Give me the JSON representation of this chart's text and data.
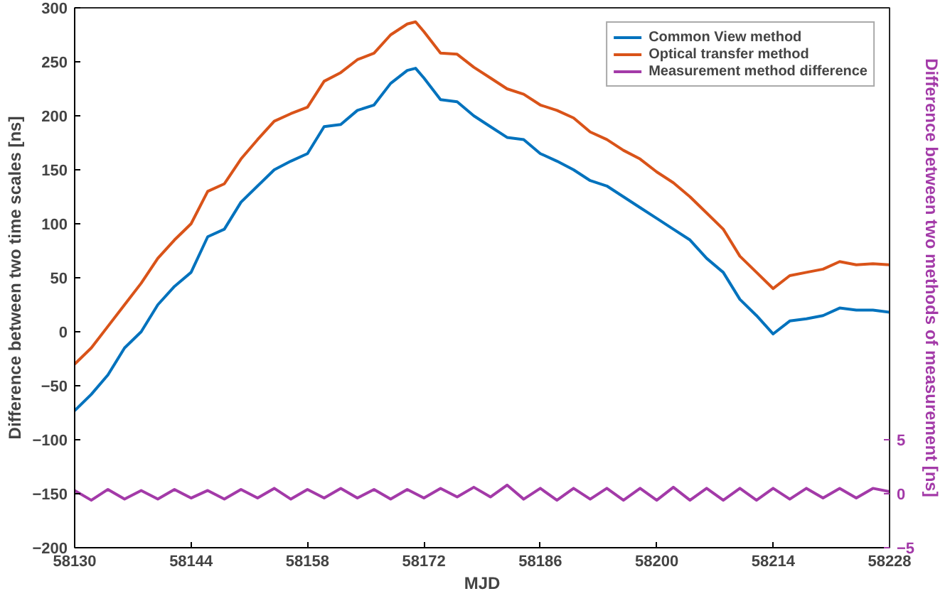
{
  "chart_data": {
    "type": "line",
    "xlabel": "MJD",
    "ylabel": "Difference between two time scales [ns]",
    "y2label": "Difference between two methods of measurement [ns]",
    "xlim": [
      58130,
      58228
    ],
    "xticks": [
      58130,
      58144,
      58158,
      58172,
      58186,
      58200,
      58214,
      58228
    ],
    "ylim": [
      -200,
      300
    ],
    "yticks": [
      -200,
      -150,
      -100,
      -50,
      0,
      50,
      100,
      150,
      200,
      250,
      300
    ],
    "y2lim": [
      -5,
      45
    ],
    "y2ticks": [
      -5,
      0,
      5
    ],
    "legend": "top right",
    "grid": false,
    "line_style": "solid",
    "series": [
      {
        "name": "Common View method",
        "color": "#0072bd",
        "x": [
          58130,
          58132,
          58134,
          58136,
          58138,
          58140,
          58142,
          58144,
          58146,
          58148,
          58150,
          58152,
          58154,
          58156,
          58158,
          58160,
          58162,
          58164,
          58166,
          58168,
          58170,
          58171,
          58172,
          58174,
          58176,
          58178,
          58180,
          58182,
          58184,
          58186,
          58188,
          58190,
          58192,
          58194,
          58196,
          58198,
          58200,
          58202,
          58204,
          58206,
          58208,
          58210,
          58212,
          58214,
          58216,
          58218,
          58220,
          58222,
          58224,
          58226,
          58228
        ],
        "values": [
          -73,
          -58,
          -40,
          -15,
          0,
          25,
          42,
          55,
          88,
          95,
          120,
          135,
          150,
          158,
          165,
          190,
          192,
          205,
          210,
          230,
          242,
          244,
          235,
          215,
          213,
          200,
          190,
          180,
          178,
          165,
          158,
          150,
          140,
          135,
          125,
          115,
          105,
          95,
          85,
          68,
          55,
          30,
          15,
          -2,
          10,
          12,
          15,
          22,
          20,
          20,
          18
        ]
      },
      {
        "name": "Optical transfer method",
        "color": "#d95319",
        "x": [
          58130,
          58132,
          58134,
          58136,
          58138,
          58140,
          58142,
          58144,
          58146,
          58148,
          58150,
          58152,
          58154,
          58156,
          58158,
          58160,
          58162,
          58164,
          58166,
          58168,
          58170,
          58171,
          58172,
          58174,
          58176,
          58178,
          58180,
          58182,
          58184,
          58186,
          58188,
          58190,
          58192,
          58194,
          58196,
          58198,
          58200,
          58202,
          58204,
          58206,
          58208,
          58210,
          58212,
          58214,
          58216,
          58218,
          58220,
          58222,
          58224,
          58226,
          58228
        ],
        "values": [
          -30,
          -15,
          5,
          25,
          45,
          68,
          85,
          100,
          130,
          137,
          160,
          178,
          195,
          202,
          208,
          232,
          240,
          252,
          258,
          275,
          285,
          287,
          278,
          258,
          257,
          245,
          235,
          225,
          220,
          210,
          205,
          198,
          185,
          178,
          168,
          160,
          148,
          138,
          125,
          110,
          95,
          70,
          55,
          40,
          52,
          55,
          58,
          65,
          62,
          63,
          62
        ]
      },
      {
        "name": "Measurement method difference",
        "color": "#a33aa8",
        "axis": "y2",
        "x": [
          58130,
          58132,
          58134,
          58136,
          58138,
          58140,
          58142,
          58144,
          58146,
          58148,
          58150,
          58152,
          58154,
          58156,
          58158,
          58160,
          58162,
          58164,
          58166,
          58168,
          58170,
          58172,
          58174,
          58176,
          58178,
          58180,
          58182,
          58184,
          58186,
          58188,
          58190,
          58192,
          58194,
          58196,
          58198,
          58200,
          58202,
          58204,
          58206,
          58208,
          58210,
          58212,
          58214,
          58216,
          58218,
          58220,
          58222,
          58224,
          58226,
          58228
        ],
        "values": [
          0.3,
          -0.6,
          0.4,
          -0.5,
          0.3,
          -0.5,
          0.4,
          -0.4,
          0.3,
          -0.5,
          0.4,
          -0.4,
          0.5,
          -0.5,
          0.4,
          -0.4,
          0.5,
          -0.4,
          0.4,
          -0.5,
          0.4,
          -0.4,
          0.5,
          -0.3,
          0.6,
          -0.3,
          0.8,
          -0.5,
          0.5,
          -0.6,
          0.5,
          -0.5,
          0.5,
          -0.6,
          0.5,
          -0.6,
          0.6,
          -0.6,
          0.5,
          -0.6,
          0.5,
          -0.6,
          0.5,
          -0.5,
          0.5,
          -0.4,
          0.5,
          -0.4,
          0.5,
          0.2
        ]
      }
    ]
  }
}
